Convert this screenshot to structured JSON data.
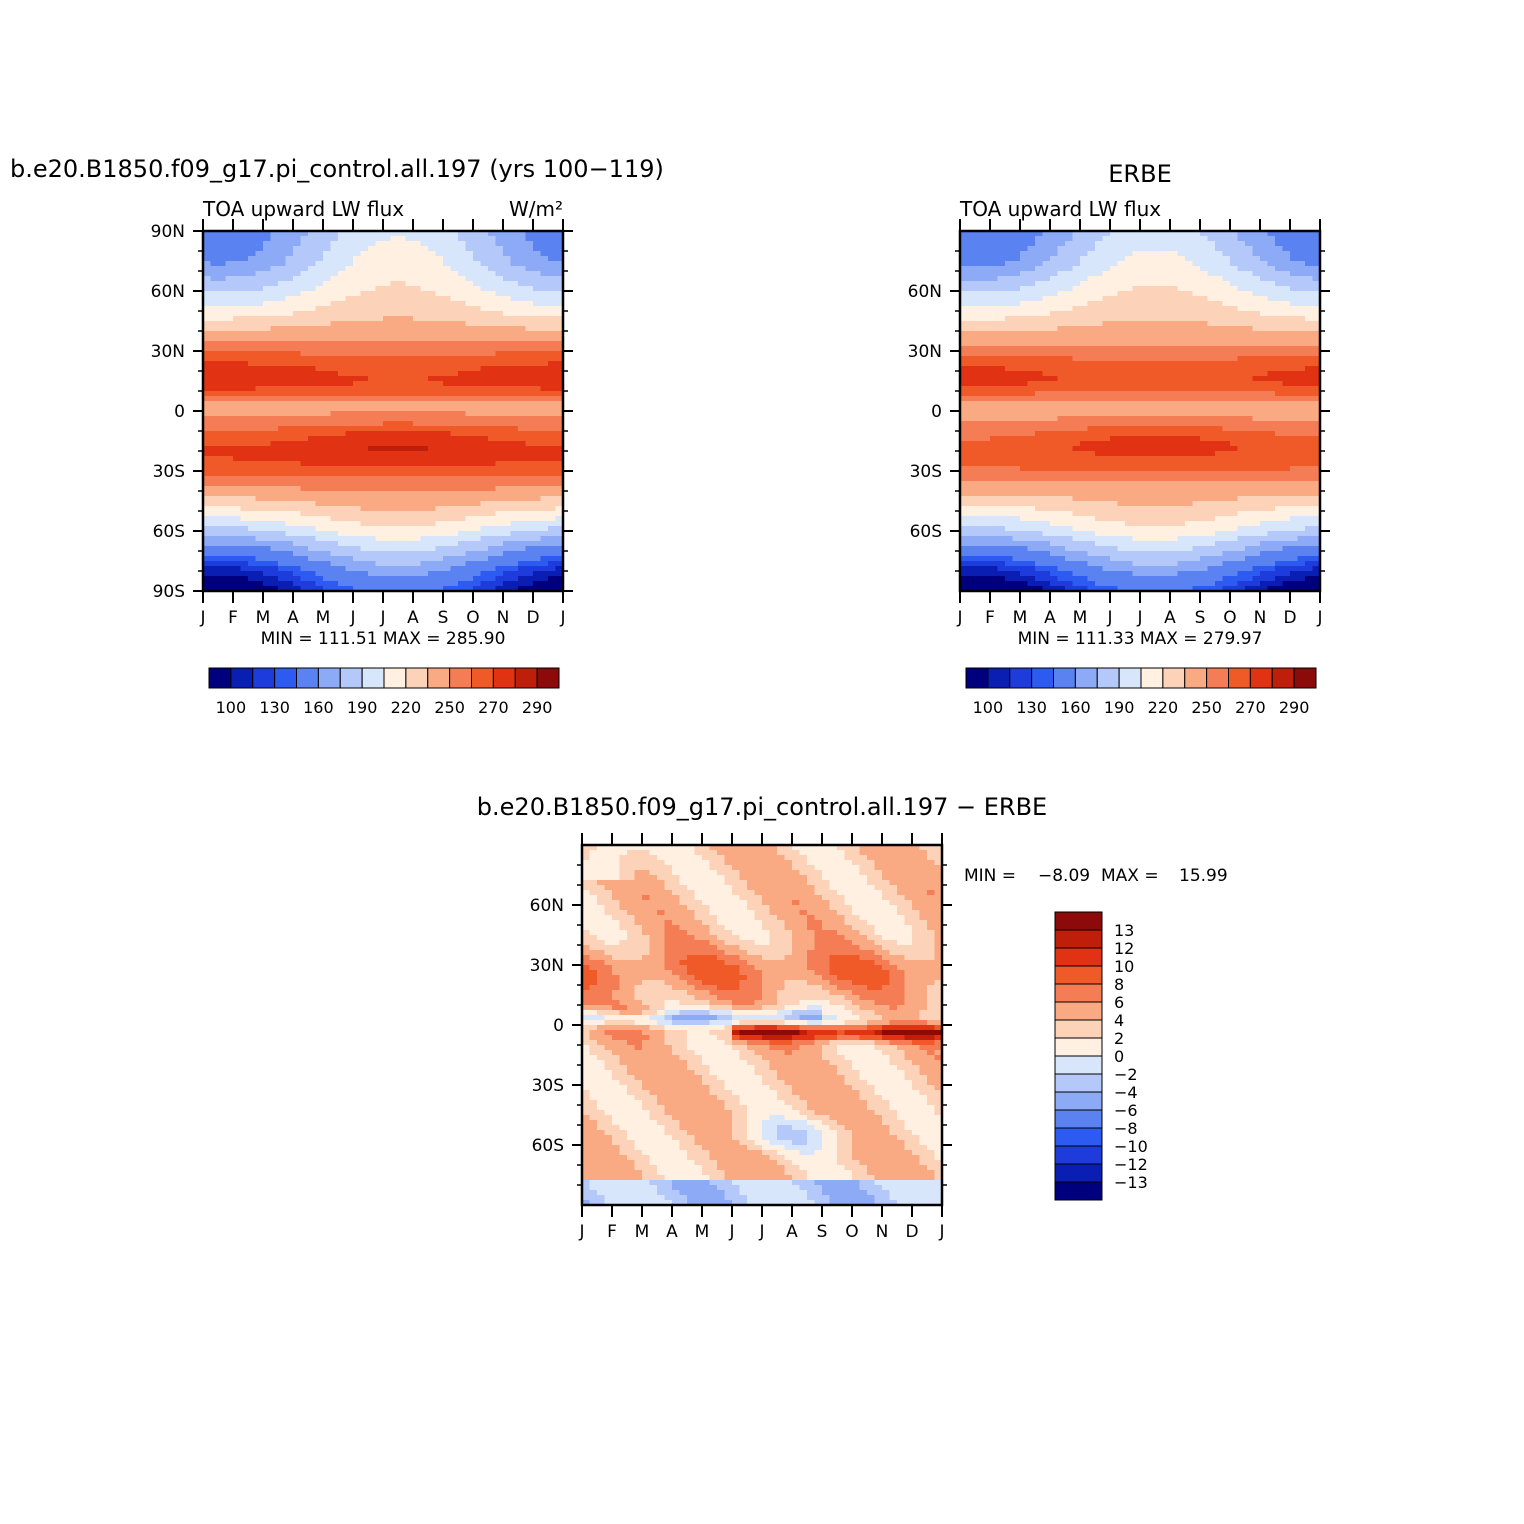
{
  "chart_data": [
    {
      "type": "heatmap",
      "title": "b.e20.B1850.f09_g17.pi_control.all.197 (yrs 100−119)",
      "subtitle_left": "TOA upward LW flux",
      "units": "W/m²",
      "x_tick_labels": [
        "J",
        "F",
        "M",
        "A",
        "M",
        "J",
        "J",
        "A",
        "S",
        "O",
        "N",
        "D",
        "J"
      ],
      "y_tick_labels": [
        "90N",
        "60N",
        "30N",
        "0",
        "30S",
        "60S",
        "90S"
      ],
      "y_tick_values": [
        90,
        60,
        30,
        0,
        -30,
        -60,
        -90
      ],
      "xlim": [
        0,
        12
      ],
      "ylim": [
        -90,
        90
      ],
      "stats": "MIN = 111.51 MAX = 285.90",
      "min": 111.51,
      "max": 285.9,
      "colorbar_labels": [
        "100",
        "130",
        "160",
        "190",
        "220",
        "250",
        "270",
        "290"
      ],
      "lat_profile": {
        "lat": [
          90,
          75,
          60,
          50,
          40,
          30,
          22,
          15,
          8,
          2,
          -5,
          -12,
          -18,
          -25,
          -32,
          -40,
          -50,
          -60,
          -70,
          -80,
          -90
        ],
        "annual_mean": [
          175,
          185,
          205,
          220,
          240,
          258,
          270,
          275,
          262,
          245,
          255,
          268,
          276,
          272,
          262,
          248,
          225,
          200,
          170,
          140,
          120
        ]
      },
      "colormap": "blue-white-red"
    },
    {
      "type": "heatmap",
      "title": "ERBE",
      "subtitle_left": "TOA upward LW flux",
      "x_tick_labels": [
        "J",
        "F",
        "M",
        "A",
        "M",
        "J",
        "J",
        "A",
        "S",
        "O",
        "N",
        "D",
        "J"
      ],
      "y_tick_labels": [
        "60N",
        "30N",
        "0",
        "30S",
        "60S"
      ],
      "y_tick_values": [
        60,
        30,
        0,
        -30,
        -60
      ],
      "xlim": [
        0,
        12
      ],
      "ylim": [
        -90,
        90
      ],
      "stats": "MIN = 111.33 MAX = 279.97",
      "min": 111.33,
      "max": 279.97,
      "colorbar_labels": [
        "100",
        "130",
        "160",
        "190",
        "220",
        "250",
        "270",
        "290"
      ],
      "lat_profile": {
        "lat": [
          90,
          75,
          60,
          50,
          40,
          30,
          22,
          15,
          8,
          2,
          -5,
          -12,
          -18,
          -25,
          -32,
          -40,
          -50,
          -60,
          -70,
          -80,
          -90
        ],
        "annual_mean": [
          170,
          182,
          205,
          220,
          238,
          255,
          266,
          270,
          258,
          242,
          252,
          264,
          270,
          266,
          256,
          242,
          222,
          200,
          170,
          140,
          118
        ]
      },
      "colormap": "blue-white-red"
    },
    {
      "type": "heatmap",
      "title": "b.e20.B1850.f09_g17.pi_control.all.197 − ERBE",
      "x_tick_labels": [
        "J",
        "F",
        "M",
        "A",
        "M",
        "J",
        "J",
        "A",
        "S",
        "O",
        "N",
        "D",
        "J"
      ],
      "y_tick_labels": [
        "60N",
        "30N",
        "0",
        "30S",
        "60S"
      ],
      "y_tick_values": [
        60,
        30,
        0,
        -30,
        -60
      ],
      "xlim": [
        0,
        12
      ],
      "ylim": [
        -90,
        90
      ],
      "stats_min_label": "MIN =",
      "stats_min_value": "−8.09",
      "stats_max_label": "MAX =",
      "stats_max_value": "15.99",
      "min": -8.09,
      "max": 15.99,
      "colorbar_labels": [
        "13",
        "12",
        "10",
        "8",
        "6",
        "4",
        "2",
        "0",
        "−2",
        "−4",
        "−6",
        "−8",
        "−10",
        "−12",
        "−13"
      ],
      "colormap": "blue-white-red"
    }
  ],
  "colors": {
    "flux_levels": [
      "#00007f",
      "#0a1eb4",
      "#1e3cdc",
      "#2d5af0",
      "#5a82f0",
      "#8caaf5",
      "#b4c8fa",
      "#d7e6fa",
      "#fff0e1",
      "#fcd2b9",
      "#faaa82",
      "#f57d55",
      "#f05a28",
      "#e13214",
      "#be1e0a",
      "#8c0a0a"
    ],
    "diff_levels": [
      "#00007f",
      "#0a1eb4",
      "#1e3cdc",
      "#2d5af0",
      "#5a82f0",
      "#8caaf5",
      "#b4c8fa",
      "#d7e6fa",
      "#fff0e1",
      "#fcd2b9",
      "#faaa82",
      "#f57d55",
      "#f05a28",
      "#e13214",
      "#be1e0a",
      "#8c0a0a"
    ]
  }
}
